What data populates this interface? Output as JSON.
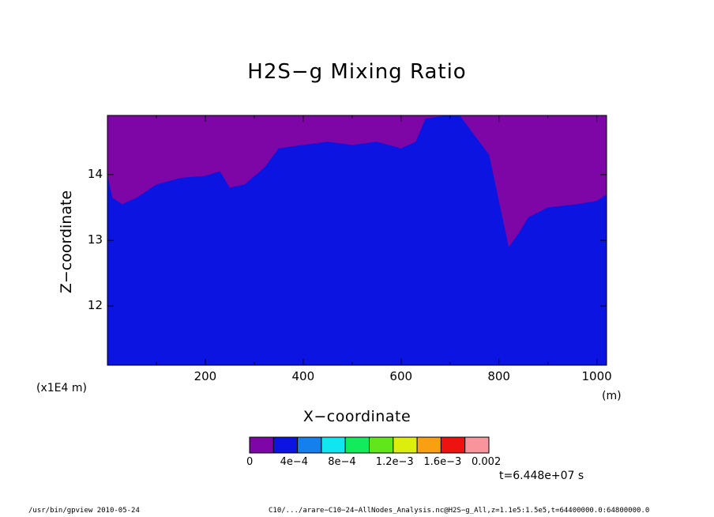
{
  "chart_data": {
    "type": "contour",
    "title": "H2S−g Mixing Ratio",
    "xlabel": "X−coordinate",
    "ylabel": "Z−coordinate",
    "x_unit": "(m)",
    "y_unit": "(x1E4 m)",
    "xlim": [
      0,
      1020
    ],
    "ylim": [
      11.1,
      14.9
    ],
    "x_ticks": [
      "200",
      "400",
      "600",
      "800",
      "1000"
    ],
    "x_tick_values": [
      200,
      400,
      600,
      800,
      1000
    ],
    "y_ticks": [
      "12",
      "13",
      "14"
    ],
    "y_tick_values": [
      12,
      13,
      14
    ],
    "colorbar": {
      "levels": [
        0,
        0.0002,
        0.0004,
        0.0006,
        0.0008,
        0.001,
        0.0012,
        0.0014,
        0.0016,
        0.0018,
        0.002
      ],
      "labels": [
        "0",
        "4e−4",
        "8e−4",
        "1.2e−3",
        "1.6e−3",
        "0.002"
      ],
      "colors": [
        "#7e06a6",
        "#0b14e0",
        "#1380ee",
        "#10e6f0",
        "#12ec5c",
        "#61e61c",
        "#dbee0c",
        "#f8a011",
        "#ee1311",
        "#f7949c"
      ]
    },
    "surface_boundary": [
      [
        0,
        14.0
      ],
      [
        10,
        13.65
      ],
      [
        30,
        13.55
      ],
      [
        60,
        13.65
      ],
      [
        100,
        13.85
      ],
      [
        150,
        13.95
      ],
      [
        200,
        13.98
      ],
      [
        230,
        14.05
      ],
      [
        250,
        13.8
      ],
      [
        280,
        13.85
      ],
      [
        320,
        14.1
      ],
      [
        350,
        14.4
      ],
      [
        400,
        14.45
      ],
      [
        450,
        14.5
      ],
      [
        500,
        14.45
      ],
      [
        550,
        14.5
      ],
      [
        600,
        14.4
      ],
      [
        630,
        14.5
      ],
      [
        650,
        14.85
      ],
      [
        690,
        14.9
      ],
      [
        720,
        14.9
      ],
      [
        750,
        14.6
      ],
      [
        780,
        14.3
      ],
      [
        800,
        13.6
      ],
      [
        820,
        12.9
      ],
      [
        840,
        13.1
      ],
      [
        860,
        13.35
      ],
      [
        900,
        13.5
      ],
      [
        960,
        13.55
      ],
      [
        1000,
        13.6
      ],
      [
        1020,
        13.7
      ]
    ],
    "annotation": "t=6.448e+07 s"
  },
  "footer": {
    "left": "/usr/bin/gpview   2010-05-24",
    "right": "C10/.../arare−C10−24−AllNodes_Analysis.nc@H2S−g_All,z=1.1e5:1.5e5,t=64400000.0:64800000.0"
  }
}
